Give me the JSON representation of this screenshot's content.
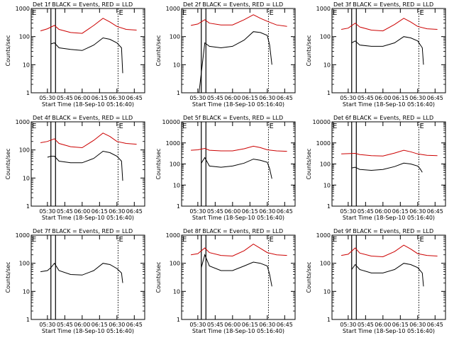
{
  "chart_data": [
    {
      "type": "line",
      "title": "Det 1f BLACK = Events, RED = LLD",
      "ylabel": "Counts/sec",
      "xlabel": "Start Time (18-Sep-10 05:16:40)",
      "yscale": "log",
      "ylim": [
        1,
        1000
      ],
      "yticks": [
        "1000",
        "100",
        "10",
        "1"
      ],
      "xticks": [
        "05:30",
        "05:45",
        "06:00",
        "06:15",
        "06:30",
        "06:45"
      ],
      "markers": [
        "E",
        "E"
      ],
      "series": [
        {
          "color": "#000000",
          "x": [
            "05:33",
            "05:36",
            "05:40",
            "05:50",
            "06:00",
            "06:10",
            "06:18",
            "06:24",
            "06:30",
            "06:34",
            "06:35"
          ],
          "y": [
            55,
            60,
            40,
            35,
            32,
            50,
            90,
            80,
            60,
            40,
            5
          ]
        },
        {
          "color": "#cc0000",
          "x": [
            "05:24",
            "05:30",
            "05:36",
            "05:40",
            "05:50",
            "06:00",
            "06:10",
            "06:18",
            "06:24",
            "06:30",
            "06:38",
            "06:47"
          ],
          "y": [
            160,
            190,
            250,
            180,
            140,
            130,
            250,
            450,
            330,
            230,
            180,
            170
          ]
        }
      ]
    },
    {
      "type": "line",
      "title": "Det 2f BLACK = Events, RED = LLD",
      "ylabel": "Counts/sec",
      "xlabel": "Start Time (18-Sep-10 05:16:40)",
      "yscale": "log",
      "ylim": [
        1,
        1000
      ],
      "yticks": [
        "1000",
        "100",
        "10",
        "1"
      ],
      "xticks": [
        "05:30",
        "05:45",
        "06:00",
        "06:15",
        "06:30",
        "06:45"
      ],
      "markers": [
        "E",
        "E"
      ],
      "series": [
        {
          "color": "#000000",
          "x": [
            "05:31",
            "05:36",
            "05:40",
            "05:50",
            "06:00",
            "06:10",
            "06:18",
            "06:24",
            "06:30",
            "06:32",
            "06:34"
          ],
          "y": [
            1,
            60,
            45,
            40,
            45,
            75,
            150,
            140,
            110,
            50,
            10
          ]
        },
        {
          "color": "#cc0000",
          "x": [
            "05:24",
            "05:30",
            "05:36",
            "05:40",
            "05:50",
            "06:00",
            "06:10",
            "06:18",
            "06:24",
            "06:30",
            "06:38",
            "06:47"
          ],
          "y": [
            250,
            280,
            400,
            300,
            260,
            260,
            400,
            600,
            450,
            350,
            260,
            230
          ]
        }
      ]
    },
    {
      "type": "line",
      "title": "Det 3f BLACK = Events, RED = LLD",
      "ylabel": "Counts/sec",
      "xlabel": "Start Time (18-Sep-10 05:16:40)",
      "yscale": "log",
      "ylim": [
        1,
        1000
      ],
      "yticks": [
        "1000",
        "100",
        "10",
        "1"
      ],
      "xticks": [
        "05:30",
        "05:45",
        "06:00",
        "06:15",
        "06:30",
        "06:45"
      ],
      "markers": [
        "E",
        "E"
      ],
      "series": [
        {
          "color": "#000000",
          "x": [
            "05:33",
            "05:36",
            "05:40",
            "05:50",
            "06:00",
            "06:10",
            "06:18",
            "06:24",
            "06:30",
            "06:34",
            "06:35"
          ],
          "y": [
            60,
            70,
            50,
            45,
            45,
            60,
            100,
            90,
            70,
            40,
            10
          ]
        },
        {
          "color": "#cc0000",
          "x": [
            "05:24",
            "05:30",
            "05:36",
            "05:40",
            "05:50",
            "06:00",
            "06:10",
            "06:18",
            "06:24",
            "06:30",
            "06:38",
            "06:47"
          ],
          "y": [
            180,
            200,
            300,
            220,
            170,
            160,
            270,
            450,
            330,
            230,
            190,
            180
          ]
        }
      ]
    },
    {
      "type": "line",
      "title": "Det 4f BLACK = Events, RED = LLD",
      "ylabel": "Counts/sec",
      "xlabel": "Start Time (18-Sep-10 05:16:40)",
      "yscale": "log",
      "ylim": [
        1,
        1000
      ],
      "yticks": [
        "1000",
        "100",
        "10",
        "1"
      ],
      "xticks": [
        "05:30",
        "05:45",
        "06:00",
        "06:15",
        "06:30",
        "06:45"
      ],
      "markers": [
        "E",
        "E"
      ],
      "series": [
        {
          "color": "#000000",
          "x": [
            "05:30",
            "05:33",
            "05:36",
            "05:40",
            "05:50",
            "06:00",
            "06:10",
            "06:18",
            "06:24",
            "06:30",
            "06:34",
            "06:35"
          ],
          "y": [
            55,
            60,
            60,
            40,
            35,
            35,
            50,
            90,
            80,
            60,
            40,
            8
          ]
        },
        {
          "color": "#cc0000",
          "x": [
            "05:24",
            "05:30",
            "05:36",
            "05:40",
            "05:50",
            "06:00",
            "06:10",
            "06:18",
            "06:24",
            "06:30",
            "06:38",
            "06:47"
          ],
          "y": [
            180,
            200,
            250,
            170,
            130,
            120,
            220,
            400,
            300,
            200,
            170,
            160
          ]
        }
      ]
    },
    {
      "type": "line",
      "title": "Det 5f BLACK = Events, RED = LLD",
      "ylabel": "Counts/sec",
      "xlabel": "Start Time (18-Sep-10 05:16:40)",
      "yscale": "log",
      "ylim": [
        1,
        10000
      ],
      "yticks": [
        "10000",
        "1000",
        "100",
        "10",
        "1"
      ],
      "xticks": [
        "05:30",
        "05:45",
        "06:00",
        "06:15",
        "06:30",
        "06:45"
      ],
      "markers": [
        "E",
        "E"
      ],
      "series": [
        {
          "color": "#000000",
          "x": [
            "05:33",
            "05:36",
            "05:40",
            "05:50",
            "06:00",
            "06:10",
            "06:18",
            "06:24",
            "06:30",
            "06:32",
            "06:34"
          ],
          "y": [
            110,
            200,
            80,
            70,
            80,
            110,
            170,
            150,
            120,
            60,
            20
          ]
        },
        {
          "color": "#cc0000",
          "x": [
            "05:24",
            "05:30",
            "05:36",
            "05:40",
            "05:50",
            "06:00",
            "06:10",
            "06:18",
            "06:24",
            "06:30",
            "06:38",
            "06:47"
          ],
          "y": [
            450,
            470,
            550,
            450,
            420,
            420,
            530,
            700,
            600,
            470,
            420,
            400
          ]
        }
      ]
    },
    {
      "type": "line",
      "title": "Det 6f BLACK = Events, RED = LLD",
      "ylabel": "Counts/sec",
      "xlabel": "Start Time (18-Sep-10 05:16:40)",
      "yscale": "log",
      "ylim": [
        1,
        10000
      ],
      "yticks": [
        "10000",
        "1000",
        "100",
        "10",
        "1"
      ],
      "xticks": [
        "05:30",
        "05:45",
        "06:00",
        "06:15",
        "06:30",
        "06:45"
      ],
      "markers": [
        "E",
        "E"
      ],
      "series": [
        {
          "color": "#000000",
          "x": [
            "05:33",
            "05:36",
            "05:40",
            "05:50",
            "06:00",
            "06:10",
            "06:18",
            "06:24",
            "06:30",
            "06:32",
            "06:34"
          ],
          "y": [
            65,
            70,
            55,
            50,
            55,
            75,
            110,
            100,
            80,
            60,
            40
          ]
        },
        {
          "color": "#cc0000",
          "x": [
            "05:24",
            "05:30",
            "05:36",
            "05:40",
            "05:50",
            "06:00",
            "06:10",
            "06:18",
            "06:24",
            "06:30",
            "06:38",
            "06:47"
          ],
          "y": [
            300,
            310,
            320,
            280,
            250,
            240,
            330,
            450,
            380,
            300,
            260,
            250
          ]
        }
      ]
    },
    {
      "type": "line",
      "title": "Det 7f BLACK = Events, RED = LLD",
      "ylabel": "Counts/sec",
      "xlabel": "Start Time (18-Sep-10 05:16:40)",
      "yscale": "log",
      "ylim": [
        1,
        1000
      ],
      "yticks": [
        "1000",
        "100",
        "10",
        "1"
      ],
      "xticks": [
        "05:30",
        "05:45",
        "06:00",
        "06:15",
        "06:30",
        "06:45"
      ],
      "markers": [
        "E",
        "E"
      ],
      "series": [
        {
          "color": "#000000",
          "x": [
            "05:24",
            "05:30",
            "05:33",
            "05:36",
            "05:40",
            "05:50",
            "06:00",
            "06:10",
            "06:18",
            "06:24",
            "06:30",
            "06:34",
            "06:35"
          ],
          "y": [
            50,
            55,
            70,
            100,
            55,
            40,
            38,
            55,
            100,
            90,
            65,
            45,
            20
          ]
        }
      ]
    },
    {
      "type": "line",
      "title": "Det 8f BLACK = Events, RED = LLD",
      "ylabel": "Counts/sec",
      "xlabel": "Start Time (18-Sep-10 05:16:40)",
      "yscale": "log",
      "ylim": [
        1,
        1000
      ],
      "yticks": [
        "1000",
        "100",
        "10",
        "1"
      ],
      "xticks": [
        "05:30",
        "05:45",
        "06:00",
        "06:15",
        "06:30",
        "06:45"
      ],
      "markers": [
        "E",
        "E"
      ],
      "series": [
        {
          "color": "#000000",
          "x": [
            "05:33",
            "05:36",
            "05:40",
            "05:50",
            "06:00",
            "06:10",
            "06:18",
            "06:24",
            "06:30",
            "06:32",
            "06:34"
          ],
          "y": [
            70,
            200,
            80,
            55,
            55,
            80,
            110,
            100,
            80,
            40,
            15
          ]
        },
        {
          "color": "#cc0000",
          "x": [
            "05:24",
            "05:30",
            "05:36",
            "05:40",
            "05:50",
            "06:00",
            "06:10",
            "06:18",
            "06:24",
            "06:30",
            "06:38",
            "06:47"
          ],
          "y": [
            200,
            220,
            350,
            240,
            190,
            180,
            280,
            480,
            340,
            240,
            200,
            190
          ]
        }
      ]
    },
    {
      "type": "line",
      "title": "Det 9f BLACK = Events, RED = LLD",
      "ylabel": "Counts/sec",
      "xlabel": "Start Time (18-Sep-10 05:16:40)",
      "yscale": "log",
      "ylim": [
        1,
        1000
      ],
      "yticks": [
        "1000",
        "100",
        "10",
        "1"
      ],
      "xticks": [
        "05:30",
        "05:45",
        "06:00",
        "06:15",
        "06:30",
        "06:45"
      ],
      "markers": [
        "E",
        "E"
      ],
      "series": [
        {
          "color": "#000000",
          "x": [
            "05:33",
            "05:36",
            "05:40",
            "05:50",
            "06:00",
            "06:10",
            "06:18",
            "06:24",
            "06:30",
            "06:34",
            "06:35"
          ],
          "y": [
            60,
            90,
            60,
            45,
            45,
            60,
            100,
            90,
            70,
            45,
            15
          ]
        },
        {
          "color": "#cc0000",
          "x": [
            "05:24",
            "05:30",
            "05:36",
            "05:40",
            "05:50",
            "06:00",
            "06:10",
            "06:18",
            "06:24",
            "06:30",
            "06:38",
            "06:47"
          ],
          "y": [
            190,
            210,
            350,
            230,
            180,
            170,
            260,
            440,
            320,
            220,
            190,
            180
          ]
        }
      ]
    }
  ]
}
